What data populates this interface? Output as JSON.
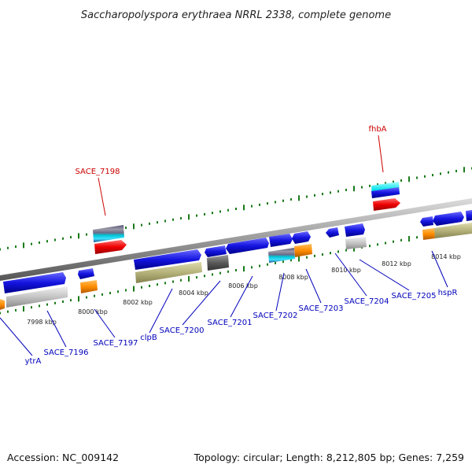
{
  "title": "Saccharopolyspora erythraea NRRL 2338, complete genome",
  "footer": {
    "accession": "Accession: NC_009142",
    "summary": "Topology: circular; Length: 8,212,805 bp; Genes: 7,259"
  },
  "colors": {
    "highlight_label": "#cc0000",
    "gene_label": "#0000bb",
    "tick": "#1a7a1a",
    "backbone": "#888888"
  },
  "kbp_labels": [
    "7998 kbp",
    "8000 kbp",
    "8002 kbp",
    "8004 kbp",
    "8006 kbp",
    "8008 kbp",
    "8010 kbp",
    "8012 kbp",
    "8014 kbp"
  ],
  "highlight_genes": [
    "SACE_7198",
    "fhbA"
  ],
  "genes": [
    "ytrA",
    "SACE_7196",
    "SACE_7197",
    "clpB",
    "SACE_7200",
    "SACE_7201",
    "SACE_7202",
    "SACE_7203",
    "SACE_7204",
    "SACE_7205",
    "hspR"
  ]
}
